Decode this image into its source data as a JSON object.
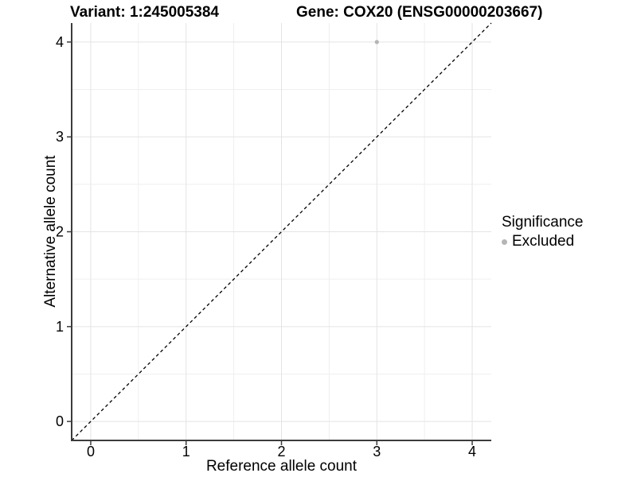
{
  "chart_data": {
    "type": "scatter",
    "titles": {
      "left": "Variant: 1:245005384",
      "right": "Gene: COX20 (ENSG00000203667)"
    },
    "xlabel": "Reference allele count",
    "ylabel": "Alternative allele count",
    "xlim": [
      -0.2,
      4.2
    ],
    "ylim": [
      -0.2,
      4.2
    ],
    "xticks": [
      0,
      1,
      2,
      3,
      4
    ],
    "yticks": [
      0,
      1,
      2,
      3,
      4
    ],
    "minor_ticks": [
      0.5,
      1.5,
      2.5,
      3.5
    ],
    "grid": "major+minor",
    "reference_line": {
      "style": "dashed",
      "color": "#000000",
      "from": [
        -0.2,
        -0.2
      ],
      "to": [
        4.2,
        4.2
      ]
    },
    "series": [
      {
        "name": "Excluded",
        "color": "#b5b5b5",
        "points": [
          {
            "x": 3,
            "y": 4
          }
        ]
      }
    ],
    "legend": {
      "title": "Significance",
      "position": "right",
      "entries": [
        {
          "label": "Excluded",
          "color": "#b5b5b5"
        }
      ]
    },
    "colors": {
      "background": "#ffffff",
      "grid_major": "#e4e4e4",
      "grid_minor": "#efefef",
      "axis": "#3c3c3c",
      "text": "#000000"
    }
  }
}
